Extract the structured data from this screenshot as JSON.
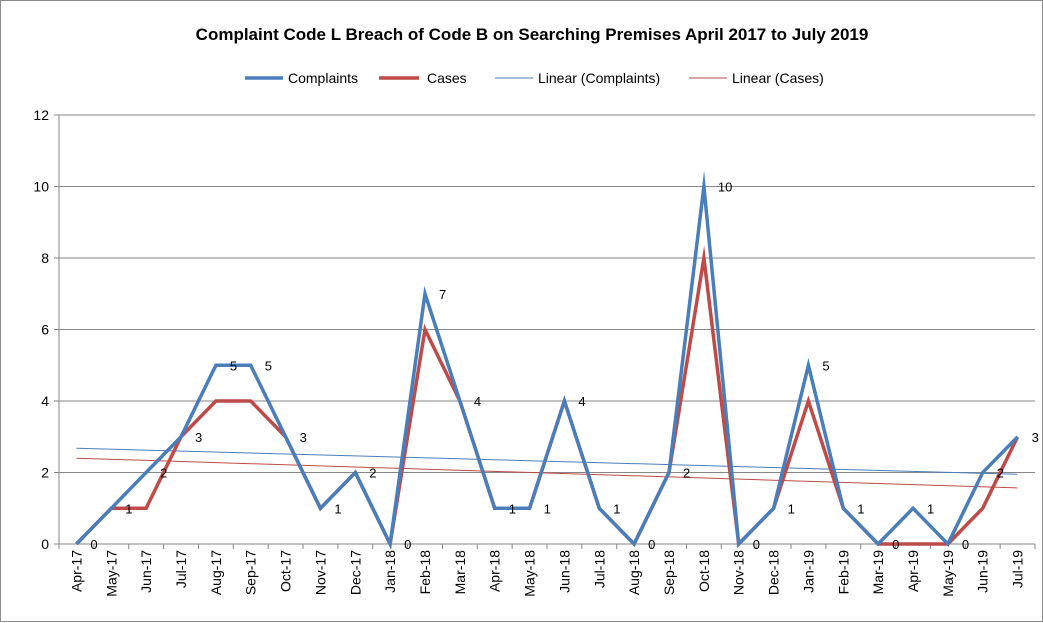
{
  "chart_data": {
    "type": "line",
    "title": "Complaint Code L Breach of Code B on Searching Premises April 2017 to July 2019",
    "xlabel": "",
    "ylabel": "",
    "categories": [
      "Apr-17",
      "May-17",
      "Jun-17",
      "Jul-17",
      "Aug-17",
      "Sep-17",
      "Oct-17",
      "Nov-17",
      "Dec-17",
      "Jan-18",
      "Feb-18",
      "Mar-18",
      "Apr-18",
      "May-18",
      "Jun-18",
      "Jul-18",
      "Aug-18",
      "Sep-18",
      "Oct-18",
      "Nov-18",
      "Dec-18",
      "Jan-19",
      "Feb-19",
      "Mar-19",
      "Apr-19",
      "May-19",
      "Jun-19",
      "Jul-19"
    ],
    "ylim": [
      0,
      12
    ],
    "yticks": [
      "0",
      "2",
      "4",
      "6",
      "8",
      "10",
      "12"
    ],
    "grid": "horizontal",
    "legend_position": "top",
    "legend": [
      "Complaints",
      "Cases",
      "Linear (Complaints)",
      "Linear (Cases)"
    ],
    "series": [
      {
        "name": "Complaints",
        "color": "#4a7ebb",
        "values": [
          0,
          1,
          2,
          3,
          5,
          5,
          3,
          1,
          2,
          0,
          7,
          4,
          1,
          1,
          4,
          1,
          0,
          2,
          10,
          0,
          1,
          5,
          1,
          0,
          1,
          0,
          2,
          3
        ],
        "data_labels": [
          "0",
          "1",
          "2",
          "3",
          "5",
          "5",
          "3",
          "1",
          "2",
          "0",
          "7",
          "4",
          "1",
          "1",
          "4",
          "1",
          "0",
          "2",
          "10",
          "0",
          "1",
          "5",
          "1",
          "0",
          "1",
          "0",
          "2",
          "3"
        ]
      },
      {
        "name": "Cases",
        "color": "#be4b48",
        "values": [
          0,
          1,
          1,
          3,
          4,
          4,
          3,
          1,
          2,
          0,
          6,
          4,
          1,
          1,
          4,
          1,
          0,
          2,
          8,
          0,
          1,
          4,
          1,
          0,
          0,
          0,
          1,
          3
        ]
      }
    ],
    "trendlines": [
      {
        "name": "Linear (Complaints)",
        "color": "#4a7ebb",
        "start": 2.68,
        "end": 1.95
      },
      {
        "name": "Linear (Cases)",
        "color": "#be4b48",
        "start": 2.4,
        "end": 1.57
      }
    ]
  }
}
